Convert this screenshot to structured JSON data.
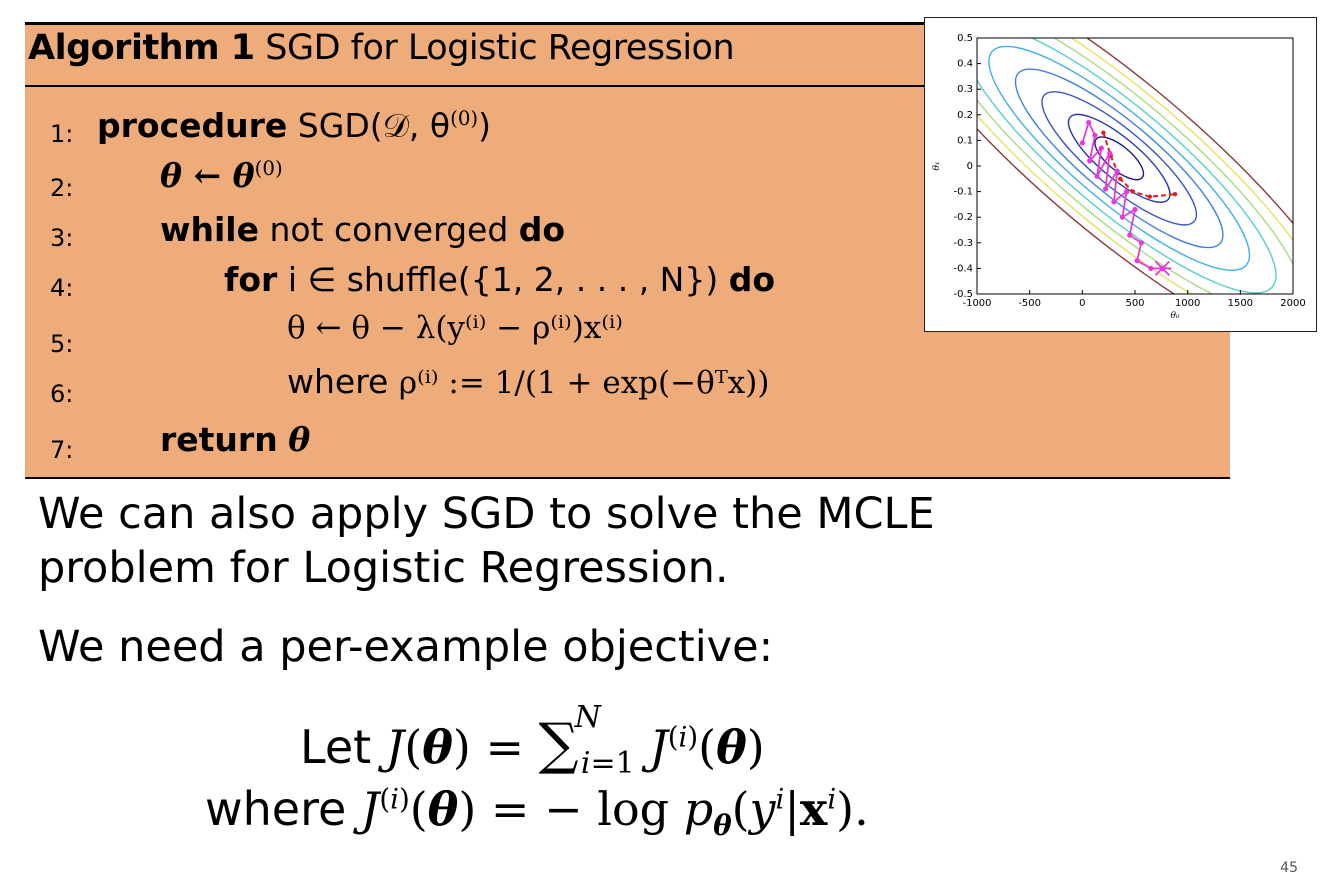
{
  "algorithm": {
    "caption_label": "Algorithm 1",
    "caption_title": "SGD for Logistic Regression",
    "lines": [
      {
        "num": "1:",
        "kw": "procedure",
        "text": "SGD(𝒟, θ",
        "sup": "(0)",
        "tail": ")"
      },
      {
        "num": "2:",
        "text": "θ ← θ",
        "sup": "(0)"
      },
      {
        "num": "3:",
        "kw1": "while",
        "mid": "not converged",
        "kw2": "do"
      },
      {
        "num": "4:",
        "kw1": "for",
        "mid": "i ∈ shuffle({1, 2, . . . , N})",
        "kw2": "do"
      },
      {
        "num": "5:",
        "text": "θ ← θ − λ(y⁽ⁱ⁾ − ρ⁽ⁱ⁾)x⁽ⁱ⁾"
      },
      {
        "num": "6:",
        "pre": "where",
        "text": "ρ⁽ⁱ⁾ := 1/(1 + exp(−θᵀx))"
      },
      {
        "num": "7:",
        "kw": "return",
        "text": "θ"
      }
    ]
  },
  "body": {
    "para1_line1": "We can also apply SGD to solve the MCLE",
    "para1_line2": "problem for Logistic Regression.",
    "para2": "We need a per-example objective:",
    "eq1_word": "Let",
    "eq2_word": "where"
  },
  "chart_data": {
    "type": "contour",
    "x_ticks": [
      "-1000",
      "-500",
      "0",
      "500",
      "1000",
      "1500",
      "2000"
    ],
    "y_ticks": [
      "0.5",
      "0.4",
      "0.3",
      "0.2",
      "0.1",
      "0",
      "-0.1",
      "-0.2",
      "-0.3",
      "-0.4",
      "-0.5"
    ],
    "xlabel": "θ₀",
    "ylabel": "θ₁",
    "xlim": [
      -1000,
      2000
    ],
    "ylim": [
      -0.5,
      0.5
    ],
    "contour_center": [
      350,
      0.03
    ],
    "contour_colors": [
      "#1b1b8f",
      "#2a3aa8",
      "#3a55c6",
      "#3f7fe0",
      "#3fb0e8",
      "#58d0c8",
      "#a6dc84",
      "#e8e060",
      "#8b3a3a"
    ],
    "sgd_path": [
      [
        0,
        0.09
      ],
      [
        60,
        0.17
      ],
      [
        120,
        0.12
      ],
      [
        70,
        0.02
      ],
      [
        180,
        0.07
      ],
      [
        140,
        -0.04
      ],
      [
        260,
        0.05
      ],
      [
        220,
        -0.09
      ],
      [
        330,
        -0.02
      ],
      [
        300,
        -0.14
      ],
      [
        420,
        -0.1
      ],
      [
        380,
        -0.2
      ],
      [
        500,
        -0.17
      ],
      [
        450,
        -0.27
      ],
      [
        560,
        -0.3
      ],
      [
        520,
        -0.37
      ],
      [
        650,
        -0.4
      ],
      [
        760,
        -0.4
      ]
    ],
    "batch_path": [
      [
        200,
        0.13
      ],
      [
        270,
        0.04
      ],
      [
        360,
        -0.05
      ],
      [
        480,
        -0.1
      ],
      [
        640,
        -0.12
      ],
      [
        880,
        -0.11
      ]
    ],
    "sgd_color": "#e83ad8",
    "batch_color": "#e02020",
    "page_number": "45"
  }
}
